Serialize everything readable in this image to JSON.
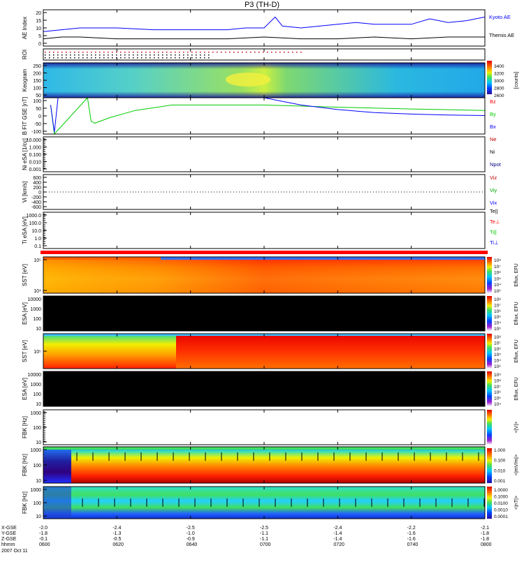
{
  "title": "P3 (TH-D)",
  "colors": {
    "kyoto": "#0000ff",
    "themis": "#000000",
    "bz": "#ff0000",
    "by": "#00cc00",
    "bx": "#0000ff",
    "orbit_bar": "#ff0000"
  },
  "panels": {
    "ae": {
      "ylabel": "AE Index",
      "legend": [
        "Kyoto AE",
        "Themis AE"
      ],
      "yticks": [
        "20",
        "15",
        "10",
        "5",
        "0"
      ]
    },
    "roi": {
      "ylabel": "ROI"
    },
    "keogram": {
      "ylabel": "Keogram",
      "yticks": [
        "250",
        "200",
        "150",
        "100",
        "50"
      ],
      "cbar_ticks": [
        "3400",
        "3200",
        "3000",
        "2800",
        "2600"
      ],
      "cbar_label": "[counts]"
    },
    "bfield": {
      "ylabel": "B FIT GSE [nT]",
      "yticks": [
        "100",
        "50",
        "0",
        "-50",
        "-100"
      ],
      "legend": [
        "Bz",
        "By",
        "Bx"
      ]
    },
    "density": {
      "ylabel": "Ni eSA [1/cc]",
      "yticks": [
        "10.000",
        "1.000",
        "0.100",
        "0.010",
        "0.001"
      ],
      "legend": [
        "Ne",
        "Ni",
        "Npot"
      ]
    },
    "velocity": {
      "ylabel": "Vi [km/s]",
      "yticks": [
        "600",
        "400",
        "200",
        "0",
        "-200",
        "-400",
        "-600"
      ],
      "legend": [
        "Viz",
        "Viy",
        "Vix"
      ]
    },
    "temperature": {
      "ylabel": "Ti eSA [eV]",
      "yticks": [
        "1000.0",
        "100.0",
        "10.0",
        "1.0",
        "0.1"
      ],
      "legend": [
        "Te||",
        "Te⊥",
        "Ti||",
        "Ti⊥"
      ]
    },
    "sst_i": {
      "ylabel": "SST [eV]",
      "yticks": [
        "10⁵",
        "10⁴"
      ],
      "cbar_ticks": [
        "10⁸",
        "10⁷",
        "10⁶",
        "10⁵",
        "10⁴",
        "10³"
      ],
      "cbar_label": "Eflux, EFU"
    },
    "esa_i": {
      "ylabel": "ESA [eV]",
      "yticks": [
        "10000",
        "1000",
        "100",
        "10"
      ],
      "cbar_ticks": [
        "10⁸",
        "10⁷",
        "10⁶",
        "10⁵",
        "10⁴",
        "10³"
      ],
      "cbar_label": "Eflux, EFU"
    },
    "sst_e": {
      "ylabel": "SST [eV]",
      "yticks": [
        "10⁵"
      ],
      "cbar_ticks": [
        "10⁸",
        "10⁷",
        "10⁶",
        "10⁵",
        "10⁴",
        "10³"
      ],
      "cbar_label": "Eflux, EFU"
    },
    "esa_e": {
      "ylabel": "ESA [eV]",
      "yticks": [
        "10000",
        "1000",
        "100",
        "10"
      ],
      "cbar_ticks": [
        "10⁹",
        "10⁸",
        "10⁷",
        "10⁶",
        "10⁵",
        "10⁴"
      ],
      "cbar_label": "Eflux, EFU"
    },
    "fbk1": {
      "ylabel": "FBK [Hz]",
      "yticks": [
        "1000",
        "100",
        "10"
      ],
      "cbar_label": "<|V|>"
    },
    "fbk2": {
      "ylabel": "FBK [Hz]",
      "yticks": [
        "1000",
        "100",
        "10"
      ],
      "cbar_ticks": [
        "1.000",
        "0.100",
        "0.010",
        "0.001"
      ],
      "cbar_label": "<|mV/m|>"
    },
    "fbk3": {
      "ylabel": "FBK [Hz]",
      "yticks": [
        "1000",
        "100",
        "10"
      ],
      "cbar_ticks": [
        "1.0000",
        "0.1000",
        "0.0100",
        "0.0010",
        "0.0001"
      ],
      "cbar_label": "<|nT|>"
    }
  },
  "xaxis": {
    "row_labels": [
      "X-GSE",
      "Y-GSE",
      "Z-GSE",
      "hhmm",
      "2007 Oct 11"
    ],
    "ticks": [
      {
        "x": [
          "-2.0",
          "-1.8",
          "-0.1"
        ],
        "t": "0600"
      },
      {
        "x": [
          "-2.4",
          "-1.3",
          "-0.5"
        ],
        "t": "0620"
      },
      {
        "x": [
          "-2.5",
          "-1.0",
          "-0.9"
        ],
        "t": "0640"
      },
      {
        "x": [
          "-2.5",
          "-1.1",
          "-1.1"
        ],
        "t": "0700"
      },
      {
        "x": [
          "-2.4",
          "-1.4",
          "-1.4"
        ],
        "t": "0720"
      },
      {
        "x": [
          "-2.2",
          "-1.6",
          "-1.6"
        ],
        "t": "0740"
      },
      {
        "x": [
          "-2.1",
          "-1.8",
          "-1.8"
        ],
        "t": "0800"
      }
    ]
  },
  "chart_data": {
    "type": "line",
    "title": "P3 (TH-D)",
    "date": "2007 Oct 11",
    "time_range": [
      "0600",
      "0800"
    ],
    "ae_index": {
      "ylim": [
        0,
        20
      ],
      "series": [
        {
          "name": "Kyoto AE",
          "t": [
            "0600",
            "0605",
            "0610",
            "0620",
            "0630",
            "0640",
            "0650",
            "0655",
            "0700",
            "0703",
            "0705",
            "0710",
            "0720",
            "0725",
            "0730",
            "0740",
            "0745",
            "0750",
            "0755",
            "0800"
          ],
          "values": [
            8,
            9,
            10,
            10,
            9,
            9,
            9,
            10,
            10,
            16,
            11,
            10,
            12,
            13,
            12,
            12,
            15,
            13,
            14,
            16
          ]
        },
        {
          "name": "Themis AE",
          "t": [
            "0600",
            "0605",
            "0610",
            "0620",
            "0630",
            "0640",
            "0650",
            "0700",
            "0710",
            "0720",
            "0730",
            "0740",
            "0750",
            "0800"
          ],
          "values": [
            4,
            5,
            5,
            4,
            4,
            4,
            4,
            5,
            4,
            4,
            5,
            4,
            5,
            5
          ]
        }
      ]
    },
    "b_field": {
      "ylim": [
        -100,
        100
      ],
      "series": [
        {
          "name": "Bz",
          "t": [],
          "values": []
        },
        {
          "name": "By",
          "t": [
            "0602",
            "0603",
            "0612",
            "0613",
            "0614",
            "0618",
            "0625",
            "0635",
            "0645",
            "0700",
            "0720",
            "0740",
            "0800"
          ],
          "values": [
            60,
            -100,
            100,
            -30,
            -40,
            -10,
            30,
            60,
            60,
            60,
            48,
            38,
            30
          ]
        },
        {
          "name": "Bx",
          "t": [
            "0602",
            "0603",
            "0604",
            "0700",
            "0710",
            "0720",
            "0730",
            "0740",
            "0750",
            "0800"
          ],
          "values": [
            60,
            -90,
            100,
            100,
            60,
            35,
            18,
            10,
            5,
            2
          ]
        }
      ]
    }
  }
}
